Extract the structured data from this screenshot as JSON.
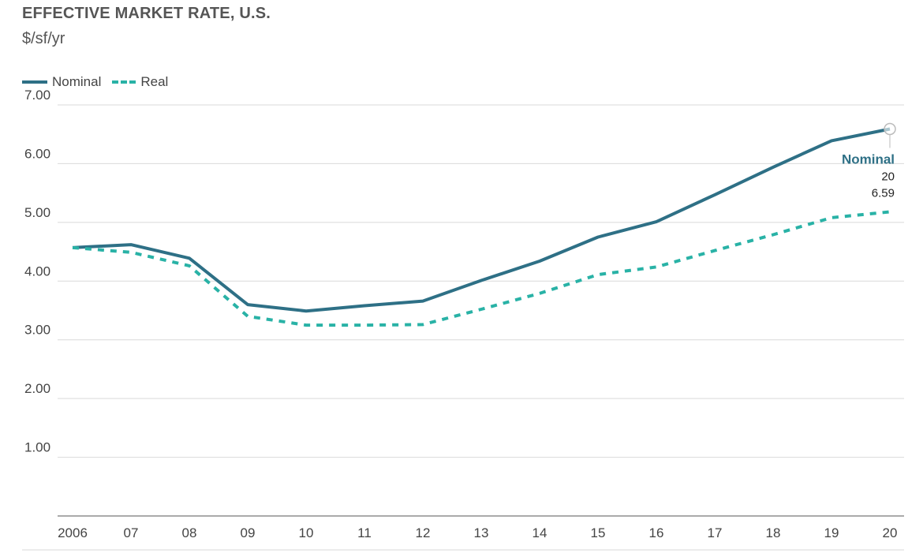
{
  "header": {
    "title": "EFFECTIVE MARKET RATE, U.S.",
    "subtitle": "$/sf/yr"
  },
  "colors": {
    "nominal": "#2e7086",
    "real": "#29b2a6",
    "grid": "#d9d9d9",
    "axis": "#555555"
  },
  "chart_data": {
    "type": "line",
    "title": "EFFECTIVE MARKET RATE, U.S.",
    "subtitle": "$/sf/yr",
    "xlabel": "",
    "ylabel": "",
    "x": [
      "2006",
      "07",
      "08",
      "09",
      "10",
      "11",
      "12",
      "13",
      "14",
      "15",
      "16",
      "17",
      "18",
      "19",
      "20"
    ],
    "y_ticks": [
      "7.00",
      "6.00",
      "5.00",
      "4.00",
      "3.00",
      "2.00",
      "1.00"
    ],
    "ylim": [
      0,
      7
    ],
    "grid": true,
    "legend": "top-left",
    "series": [
      {
        "name": "Nominal",
        "style": "solid",
        "values": [
          4.57,
          4.62,
          4.39,
          3.6,
          3.49,
          3.58,
          3.66,
          4.01,
          4.34,
          4.75,
          5.01,
          5.47,
          5.94,
          6.39,
          6.59
        ]
      },
      {
        "name": "Real",
        "style": "dashed",
        "values": [
          4.57,
          4.49,
          4.26,
          3.4,
          3.25,
          3.25,
          3.26,
          3.52,
          3.79,
          4.11,
          4.24,
          4.52,
          4.79,
          5.08,
          5.18
        ]
      }
    ],
    "annotation": {
      "series": "Nominal",
      "x": "20",
      "value": "6.59"
    }
  }
}
